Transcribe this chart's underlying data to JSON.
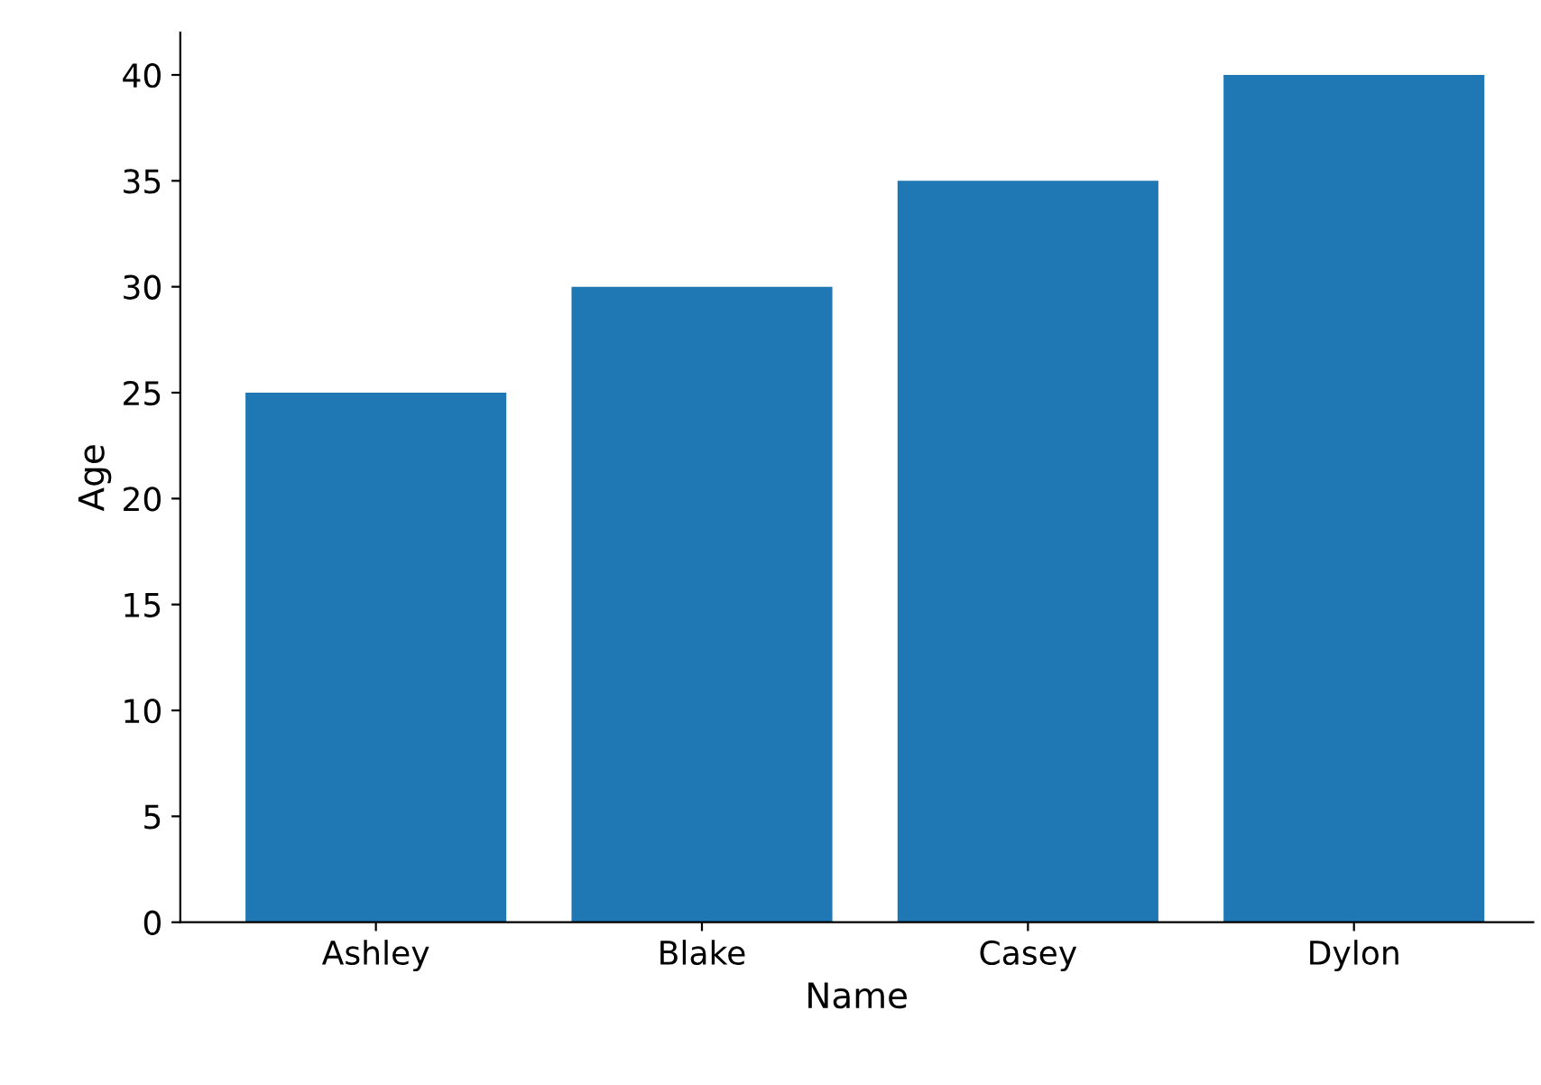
{
  "chart_data": {
    "type": "bar",
    "xlabel": "Name",
    "ylabel": "Age",
    "categories": [
      "Ashley",
      "Blake",
      "Casey",
      "Dylon"
    ],
    "values": [
      25,
      30,
      35,
      40
    ],
    "color": "#1f77b4",
    "ylim": [
      0,
      42
    ],
    "yticks": [
      0,
      5,
      10,
      15,
      20,
      25,
      30,
      35,
      40
    ],
    "grid": false,
    "legend": false
  }
}
